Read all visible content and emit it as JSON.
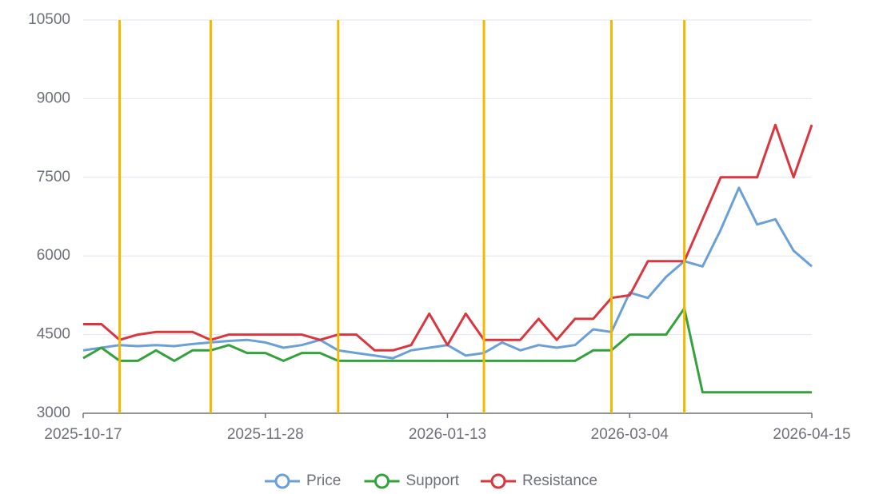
{
  "chart_data": {
    "type": "line",
    "x": [
      "2025-10-17",
      "2025-10-21",
      "2025-10-24",
      "2025-10-29",
      "2025-11-03",
      "2025-11-06",
      "2025-11-11",
      "2025-11-14",
      "2025-11-19",
      "2025-11-24",
      "2025-11-28",
      "2025-12-03",
      "2025-12-08",
      "2025-12-11",
      "2025-12-16",
      "2025-12-19",
      "2025-12-24",
      "2025-12-30",
      "2026-01-05",
      "2026-01-08",
      "2026-01-13",
      "2026-01-16",
      "2026-01-21",
      "2026-01-26",
      "2026-01-29",
      "2026-02-03",
      "2026-02-06",
      "2026-02-11",
      "2026-02-20",
      "2026-02-25",
      "2026-03-04",
      "2026-03-09",
      "2026-03-12",
      "2026-03-17",
      "2026-03-20",
      "2026-03-25",
      "2026-03-30",
      "2026-04-02",
      "2026-04-07",
      "2026-04-10",
      "2026-04-15"
    ],
    "series": [
      {
        "name": "Price",
        "color": "#6a9fd8",
        "values": [
          4200,
          4250,
          4300,
          4280,
          4300,
          4280,
          4320,
          4350,
          4380,
          4400,
          4350,
          4250,
          4300,
          4400,
          4200,
          4150,
          4100,
          4050,
          4200,
          4250,
          4300,
          4100,
          4150,
          4350,
          4200,
          4300,
          4250,
          4300,
          4600,
          4550,
          5300,
          5200,
          5600,
          5900,
          5800,
          6500,
          7300,
          6600,
          6700,
          6100,
          5800
        ]
      },
      {
        "name": "Support",
        "color": "#34a23c",
        "values": [
          4050,
          4250,
          4000,
          4000,
          4200,
          4000,
          4200,
          4200,
          4300,
          4150,
          4150,
          4000,
          4150,
          4150,
          4000,
          4000,
          4000,
          4000,
          4000,
          4000,
          4000,
          4000,
          4000,
          4000,
          4000,
          4000,
          4000,
          4000,
          4200,
          4200,
          4500,
          4500,
          4500,
          5000,
          3400,
          3400,
          3400,
          3400,
          3400,
          3400,
          3400
        ]
      },
      {
        "name": "Resistance",
        "color": "#d9363e",
        "values": [
          4700,
          4700,
          4400,
          4500,
          4550,
          4550,
          4550,
          4400,
          4500,
          4500,
          4500,
          4500,
          4500,
          4400,
          4500,
          4500,
          4200,
          4200,
          4300,
          4900,
          4300,
          4900,
          4400,
          4400,
          4400,
          4800,
          4400,
          4800,
          4800,
          5200,
          5250,
          5900,
          5900,
          5900,
          6700,
          7500,
          7500,
          7500,
          8500,
          7500,
          8500
        ]
      }
    ],
    "xticks": [
      "2025-10-17",
      "2025-11-28",
      "2026-01-13",
      "2026-03-04",
      "2026-04-15"
    ],
    "markers": [
      "2025-10-24",
      "2025-11-14",
      "2025-12-16",
      "2026-01-21",
      "2026-02-25",
      "2026-03-17"
    ],
    "marker_color": "#f5b800",
    "ylim": [
      3000,
      10500
    ],
    "yticks": [
      3000,
      4500,
      6000,
      7500,
      9000,
      10500
    ],
    "grid": true,
    "legend": "bottom"
  }
}
